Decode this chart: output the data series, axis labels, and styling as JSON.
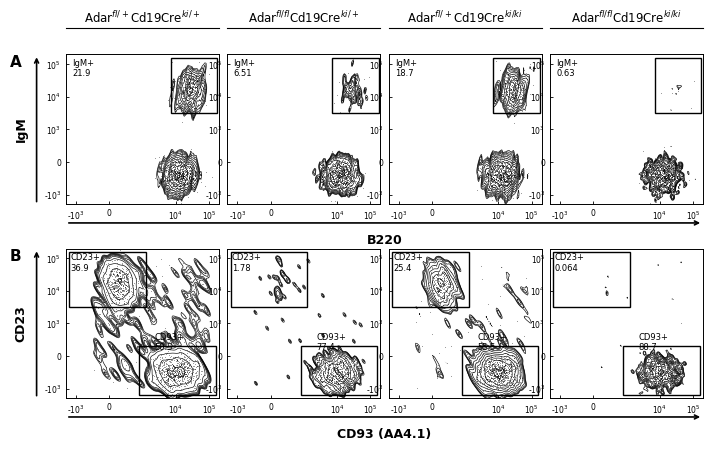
{
  "col_titles": [
    "Adar$^{fl/+}$Cd19Cre$^{ki/+}$",
    "Adar$^{fl/fl}$Cd19Cre$^{ki/+}$",
    "Adar$^{fl/+}$Cd19Cre$^{ki/ki}$",
    "Adar$^{fl/fl}$Cd19Cre$^{ki/ki}$"
  ],
  "row_labels": [
    "A",
    "B"
  ],
  "row_ylabels": [
    "IgM",
    "CD23"
  ],
  "row_xlabels": [
    "B220",
    "CD93 (AA4.1)"
  ],
  "panel_A_labels": [
    "IgM+\n21.9",
    "IgM+\n6.51",
    "IgM+\n18.7",
    "IgM+\n0.63"
  ],
  "panel_B_upper": [
    "CD23+\n36.9",
    "CD23+\n1.78",
    "CD23+\n25.4",
    "CD23+\n0.064"
  ],
  "panel_B_lower": [
    "CD93+\n50.3",
    "CD93+\n77.4",
    "CD93+\n55.5",
    "CD93+\n88.7"
  ],
  "background_color": "#ffffff",
  "font_size_title": 8.5,
  "font_size_gate": 6.0,
  "font_size_tick": 5.5,
  "font_size_axis_label": 9
}
